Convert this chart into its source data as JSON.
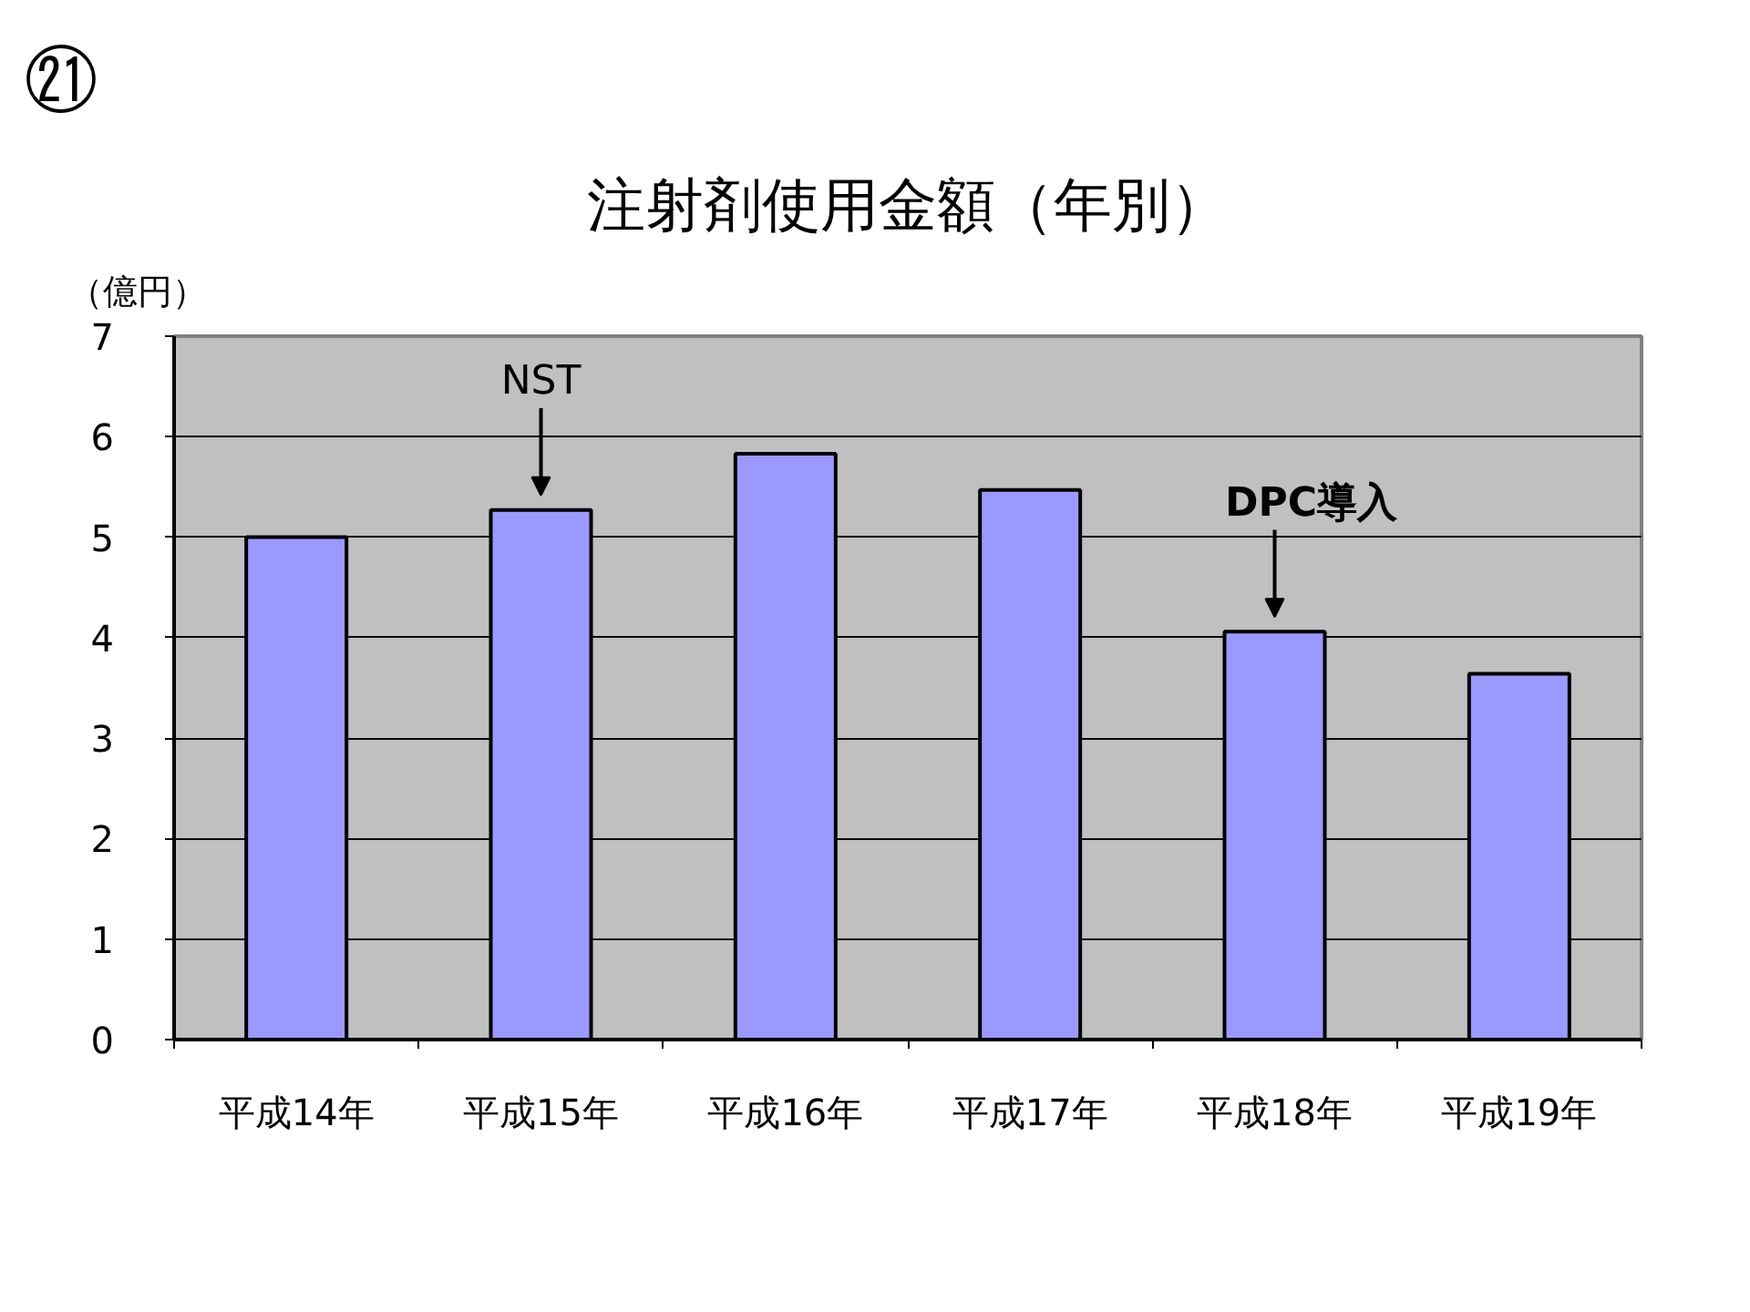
{
  "chart_data": {
    "type": "bar",
    "title": "注射剤使用金額（年別）",
    "ylabel": "（億円）",
    "categories": [
      "平成14年",
      "平成15年",
      "平成16年",
      "平成17年",
      "平成18年",
      "平成19年"
    ],
    "values": [
      5.0,
      5.27,
      5.83,
      5.47,
      4.06,
      3.64
    ],
    "color": "#9999ff",
    "ylim": [
      0,
      7
    ],
    "yticks": [
      0,
      1,
      2,
      3,
      4,
      5,
      6,
      7
    ],
    "grid": "y",
    "annotations": [
      "㉑",
      {
        "text": "NST",
        "x": "平成15年",
        "y": 5.27
      },
      {
        "text": "DPC導入",
        "x": "平成18年",
        "y": 4.06
      }
    ]
  }
}
